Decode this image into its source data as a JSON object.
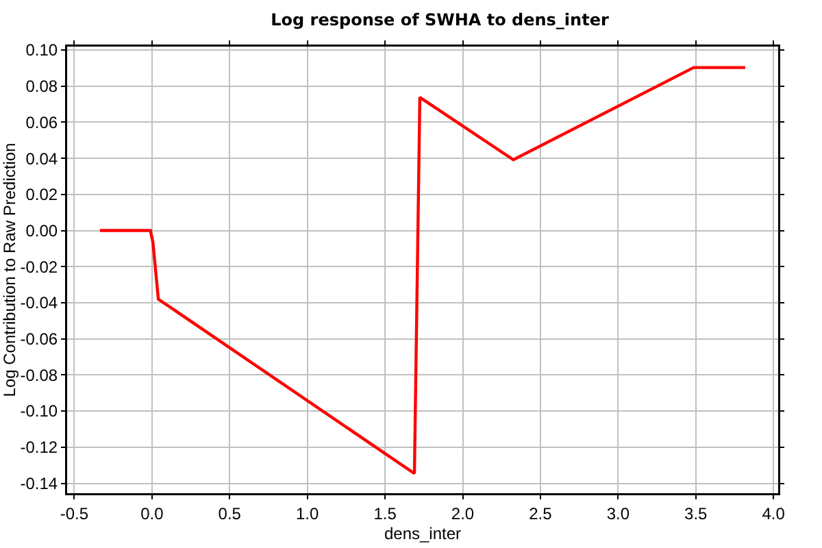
{
  "chart_data": {
    "type": "line",
    "title": "Log response of SWHA to dens_inter",
    "xlabel": "dens_inter",
    "ylabel": "Log Contribution to Raw Prediction",
    "x": [
      -0.335,
      -0.01,
      0.006,
      0.041,
      1.689,
      1.724,
      2.326,
      3.486,
      3.818
    ],
    "series": [
      {
        "color": "#ff0000",
        "values": [
          0,
          0,
          -0.0064,
          -0.038,
          -0.1346,
          0.0738,
          0.0392,
          0.0903,
          0.0903
        ]
      }
    ],
    "xlim": [
      -0.546,
      4.03
    ],
    "ylim": [
      -0.1455,
      0.1019
    ],
    "xticks": [
      {
        "value": -0.5,
        "label": "-0.5"
      },
      {
        "value": 0,
        "label": "0.0"
      },
      {
        "value": 0.5,
        "label": "0.5"
      },
      {
        "value": 1,
        "label": "1.0"
      },
      {
        "value": 1.5,
        "label": "1.5"
      },
      {
        "value": 2,
        "label": "2.0"
      },
      {
        "value": 2.5,
        "label": "2.5"
      },
      {
        "value": 3,
        "label": "3.0"
      },
      {
        "value": 3.5,
        "label": "3.5"
      },
      {
        "value": 4,
        "label": "4.0"
      }
    ],
    "yticks": [
      {
        "value": -0.14,
        "label": "-0.14"
      },
      {
        "value": -0.12,
        "label": "-0.12"
      },
      {
        "value": -0.1,
        "label": "-0.10"
      },
      {
        "value": -0.08,
        "label": "-0.08"
      },
      {
        "value": -0.06,
        "label": "-0.06"
      },
      {
        "value": -0.04,
        "label": "-0.04"
      },
      {
        "value": -0.02,
        "label": "-0.02"
      },
      {
        "value": 0,
        "label": "0.00"
      },
      {
        "value": 0.02,
        "label": "0.02"
      },
      {
        "value": 0.04,
        "label": "0.04"
      },
      {
        "value": 0.06,
        "label": "0.06"
      },
      {
        "value": 0.08,
        "label": "0.08"
      },
      {
        "value": 0.1,
        "label": "0.10"
      }
    ],
    "grid": true,
    "line_style": "solid"
  }
}
